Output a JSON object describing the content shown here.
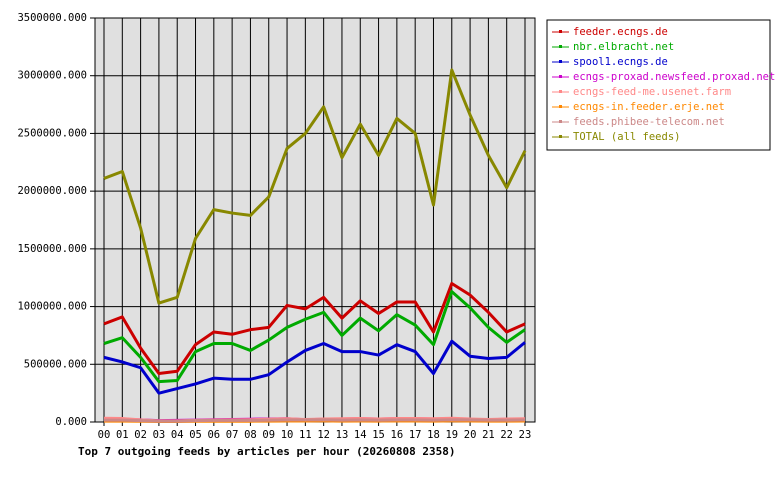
{
  "chart_data": {
    "type": "line",
    "title": "Top 7 outgoing feeds by articles per hour (20260808 2358)",
    "categories": [
      "00",
      "01",
      "02",
      "03",
      "04",
      "05",
      "06",
      "07",
      "08",
      "09",
      "10",
      "11",
      "12",
      "13",
      "14",
      "15",
      "16",
      "17",
      "18",
      "19",
      "20",
      "21",
      "22",
      "23"
    ],
    "ylim": [
      0,
      3500000
    ],
    "yticks": [
      {
        "value": 0,
        "label": "0.000"
      },
      {
        "value": 500000,
        "label": "500000.000"
      },
      {
        "value": 1000000,
        "label": "1000000.000"
      },
      {
        "value": 1500000,
        "label": "1500000.000"
      },
      {
        "value": 2000000,
        "label": "2000000.000"
      },
      {
        "value": 2500000,
        "label": "2500000.000"
      },
      {
        "value": 3000000,
        "label": "3000000.000"
      },
      {
        "value": 3500000,
        "label": "3500000.000"
      }
    ],
    "grid": true,
    "legend": "right",
    "series": [
      {
        "name": "feeder.ecngs.de",
        "color": "#cc0000",
        "values": [
          850000,
          910000,
          640000,
          420000,
          440000,
          670000,
          780000,
          760000,
          800000,
          820000,
          1010000,
          980000,
          1080000,
          900000,
          1050000,
          940000,
          1040000,
          1040000,
          780000,
          1200000,
          1100000,
          950000,
          780000,
          850000
        ]
      },
      {
        "name": "nbr.elbracht.net",
        "color": "#00aa00",
        "values": [
          680000,
          730000,
          560000,
          350000,
          360000,
          610000,
          680000,
          680000,
          620000,
          710000,
          820000,
          890000,
          950000,
          750000,
          900000,
          790000,
          930000,
          840000,
          670000,
          1130000,
          990000,
          820000,
          690000,
          800000
        ]
      },
      {
        "name": "spool1.ecngs.de",
        "color": "#0000cc",
        "values": [
          560000,
          520000,
          470000,
          250000,
          290000,
          330000,
          380000,
          370000,
          370000,
          410000,
          520000,
          620000,
          680000,
          610000,
          610000,
          580000,
          670000,
          610000,
          420000,
          700000,
          570000,
          550000,
          560000,
          690000
        ]
      },
      {
        "name": "ecngs-proxad.newsfeed.proxad.net",
        "color": "#cc00cc",
        "values": [
          20000,
          22000,
          18000,
          12000,
          14000,
          16000,
          20000,
          22000,
          24000,
          26000,
          28000,
          20000,
          24000,
          26000,
          28000,
          26000,
          28000,
          28000,
          26000,
          28000,
          22000,
          20000,
          24000,
          26000
        ]
      },
      {
        "name": "ecngs-feed-me.usenet.farm",
        "color": "#ff8888",
        "values": [
          32000,
          30000,
          18000,
          10000,
          10000,
          14000,
          16000,
          18000,
          20000,
          24000,
          28000,
          22000,
          26000,
          28000,
          30000,
          26000,
          30000,
          30000,
          28000,
          32000,
          26000,
          22000,
          26000,
          28000
        ]
      },
      {
        "name": "ecngs-in.feeder.erje.net",
        "color": "#ff8800",
        "values": [
          8000,
          8000,
          6000,
          4000,
          4000,
          6000,
          7000,
          7000,
          7000,
          8000,
          9000,
          9000,
          10000,
          8000,
          9000,
          8000,
          9000,
          9000,
          8000,
          10000,
          9000,
          8000,
          8000,
          9000
        ]
      },
      {
        "name": "feeds.phibee-telecom.net",
        "color": "#cc8888",
        "values": [
          16000,
          16000,
          12000,
          8000,
          8000,
          12000,
          14000,
          14000,
          14000,
          16000,
          18000,
          18000,
          20000,
          16000,
          18000,
          16000,
          18000,
          18000,
          16000,
          20000,
          18000,
          16000,
          16000,
          18000
        ]
      },
      {
        "name": "TOTAL (all feeds)",
        "color": "#888800",
        "values": [
          2110000,
          2170000,
          1680000,
          1030000,
          1080000,
          1590000,
          1840000,
          1810000,
          1790000,
          1950000,
          2370000,
          2500000,
          2730000,
          2290000,
          2580000,
          2310000,
          2630000,
          2500000,
          1880000,
          3050000,
          2660000,
          2310000,
          2030000,
          2350000
        ]
      }
    ]
  }
}
